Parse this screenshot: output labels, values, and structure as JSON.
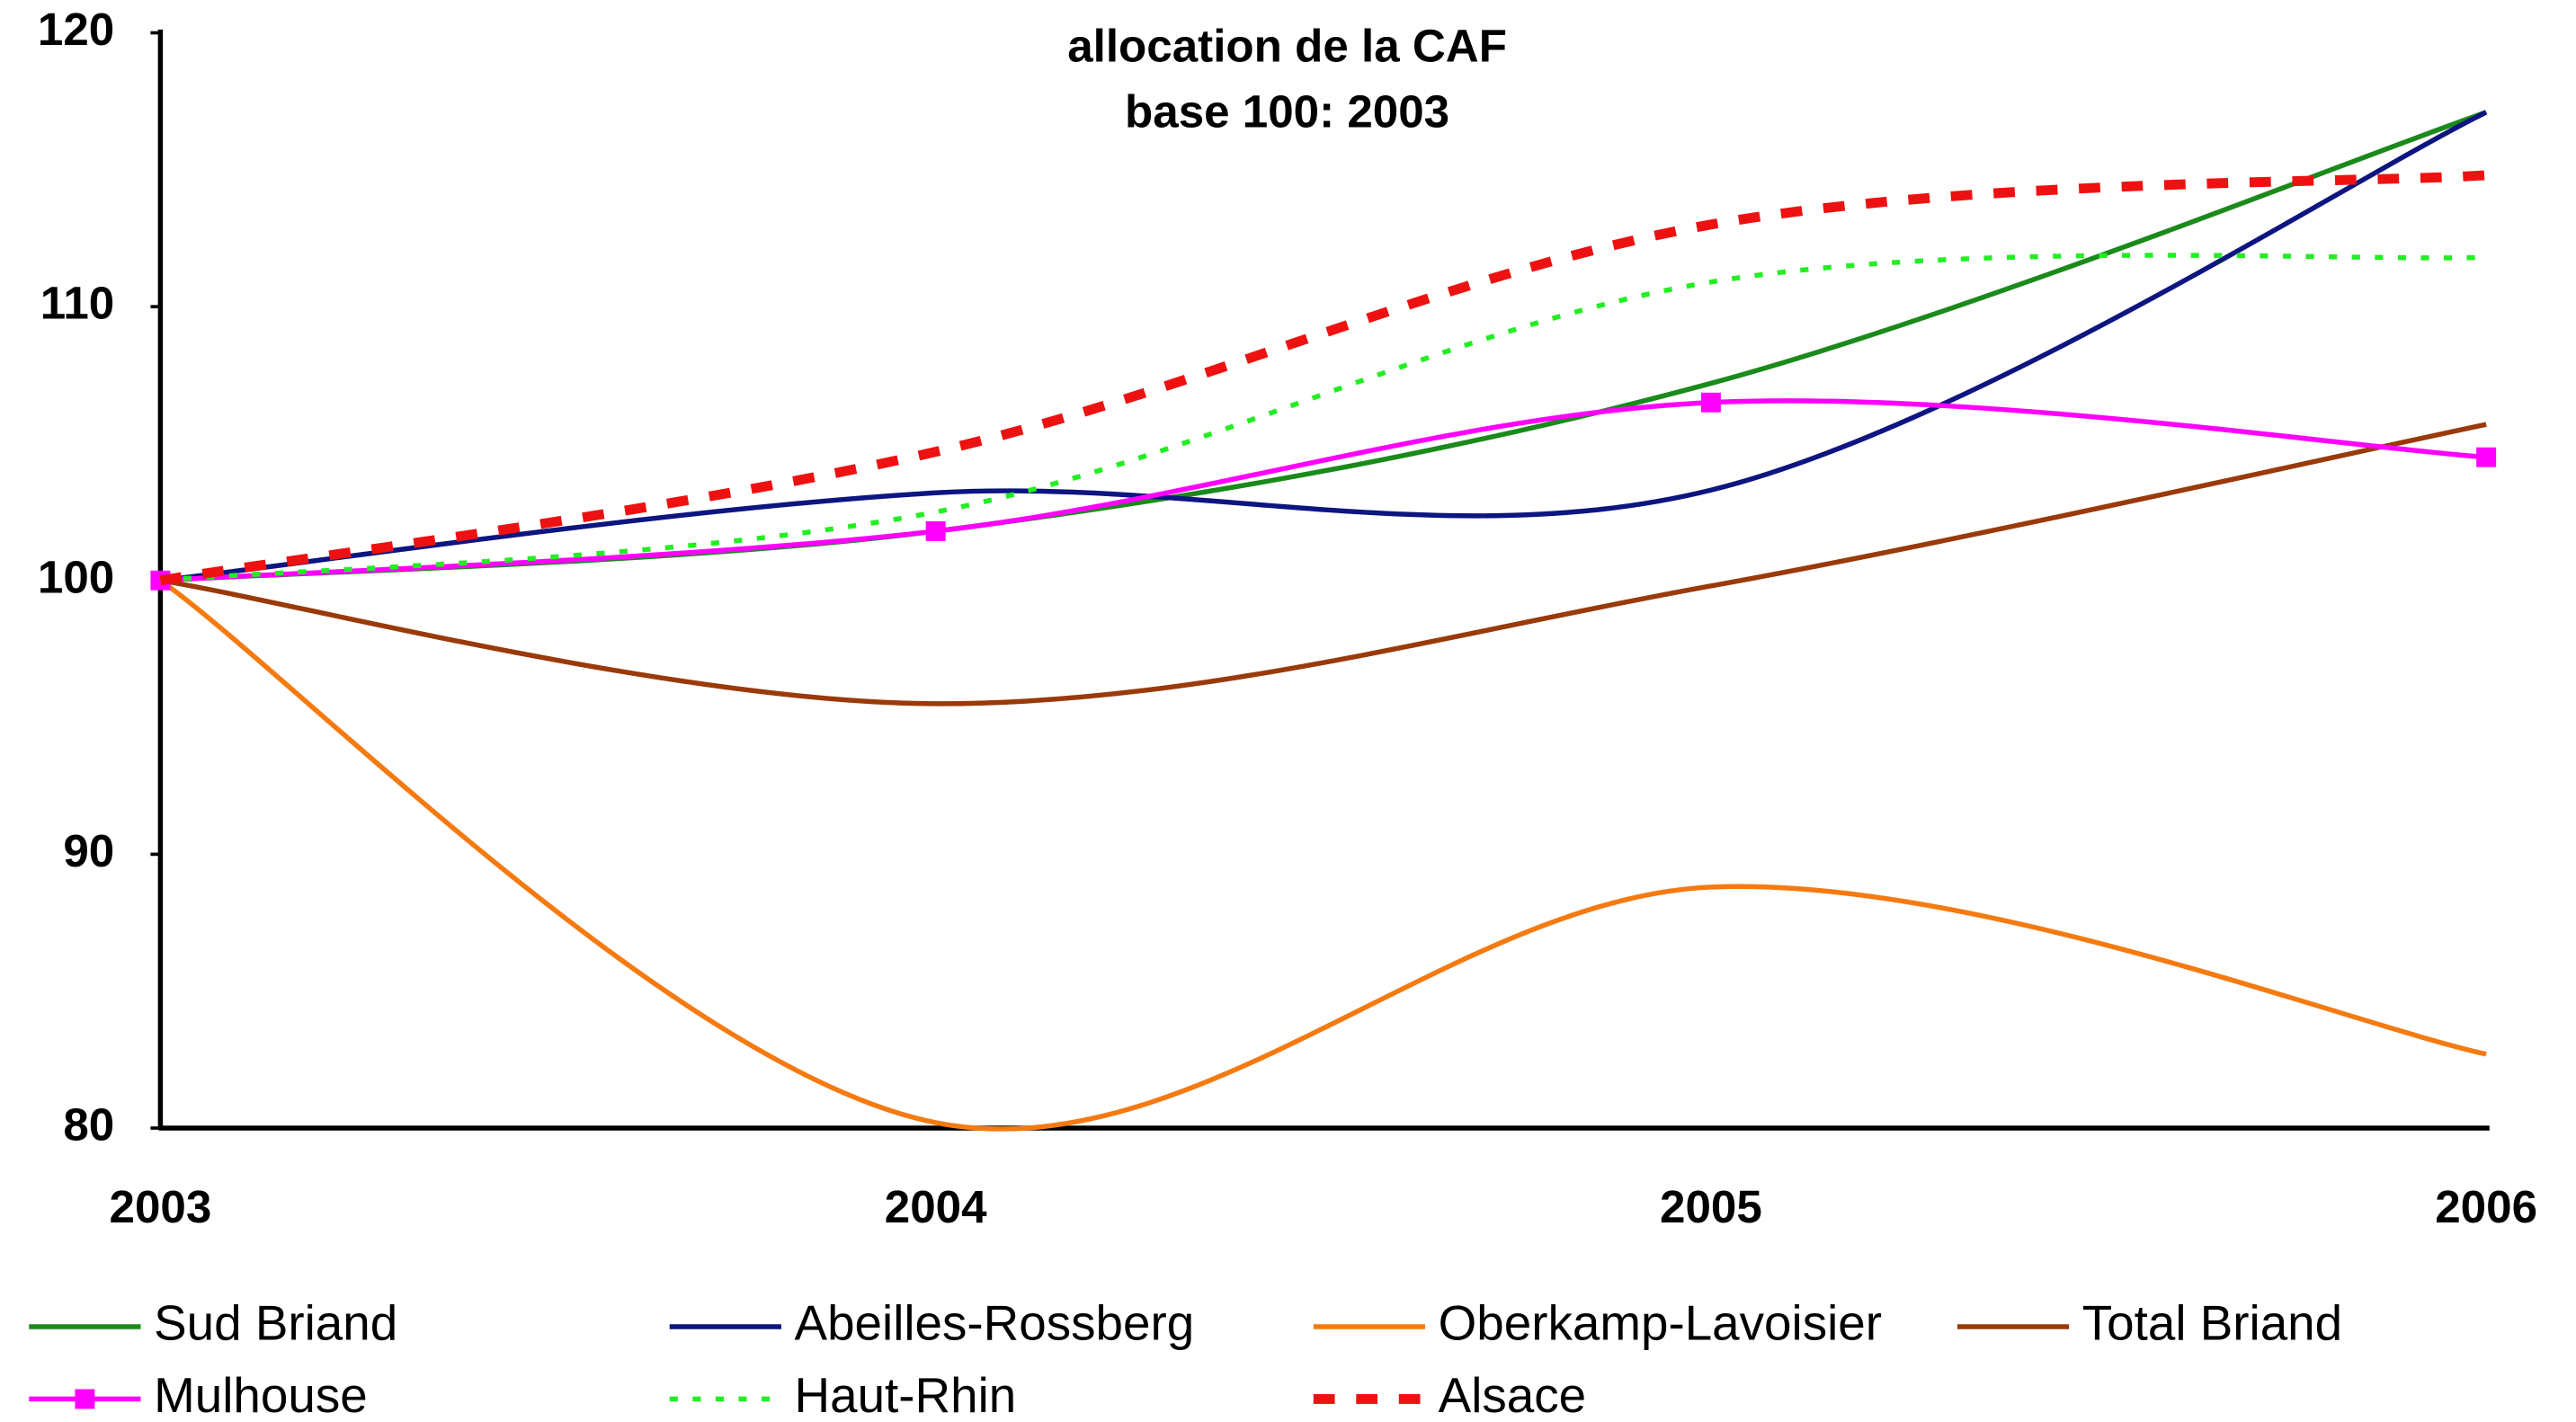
{
  "chart_data": {
    "type": "line",
    "title_lines": [
      "allocation de la CAF",
      "base 100: 2003"
    ],
    "categories": [
      "2003",
      "2004",
      "2005",
      "2006"
    ],
    "ylim": [
      80,
      120
    ],
    "yticks": [
      80,
      90,
      100,
      110,
      120
    ],
    "smooth": true,
    "series": [
      {
        "name": "Sud Briand",
        "color": "#1a8a1a",
        "dash": "solid",
        "values": [
          100,
          101.8,
          107.2,
          117.1
        ]
      },
      {
        "name": "Abeilles-Rossberg",
        "color": "#0d1580",
        "dash": "solid",
        "values": [
          100,
          103.2,
          103.3,
          117.1
        ]
      },
      {
        "name": "Oberkamp-Lavoisier",
        "color": "#f57a10",
        "dash": "solid",
        "values": [
          100,
          80.2,
          88.8,
          82.7
        ]
      },
      {
        "name": "Total Briand",
        "color": "#9a3a0a",
        "dash": "solid",
        "values": [
          100,
          95.5,
          99.8,
          105.7
        ]
      },
      {
        "name": "Mulhouse",
        "color": "#ff00ff",
        "dash": "solid",
        "marker": "square",
        "values": [
          100,
          101.8,
          106.5,
          104.5
        ]
      },
      {
        "name": "Haut-Rhin",
        "color": "#22ee22",
        "dash": "dotted",
        "values": [
          100,
          102.5,
          110.9,
          111.8
        ]
      },
      {
        "name": "Alsace",
        "color": "#ee1111",
        "dash": "dashed",
        "values": [
          100,
          104.7,
          113,
          114.8
        ]
      }
    ]
  }
}
